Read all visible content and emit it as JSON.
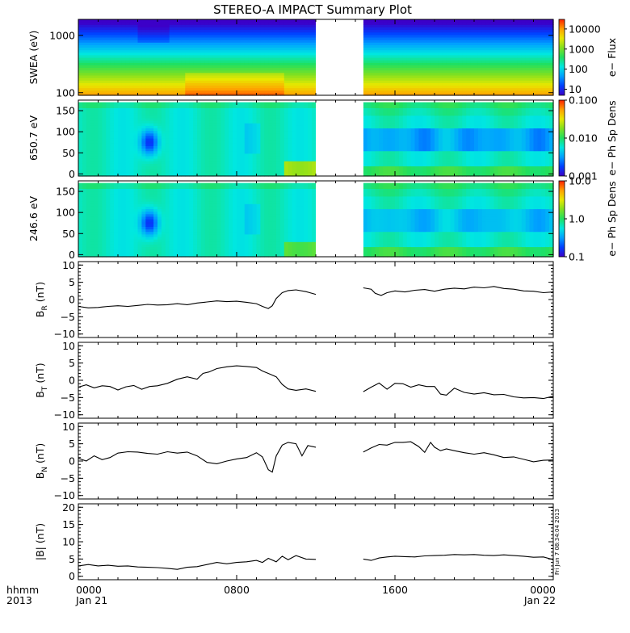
{
  "title": "STEREO-A IMPACT Summary Plot",
  "stamp": "Fri Jun  7 08:34:04 2013",
  "time_axis": {
    "row1_labels": [
      "0000",
      "0800",
      "1600",
      "0000"
    ],
    "row2_labels": [
      "Jan 21",
      "",
      "",
      "Jan 22"
    ],
    "corner_row1": "hhmm",
    "corner_row2": "2013",
    "range_hours": [
      0,
      24
    ],
    "data_gap_hours": [
      12.0,
      14.4
    ]
  },
  "colors": {
    "spectrogram_scale": [
      "#3c00c8",
      "#0040ff",
      "#00a0ff",
      "#00e8e0",
      "#20e060",
      "#80e020",
      "#e8e800",
      "#ffa000",
      "#ff2000"
    ],
    "trace": "#000000"
  },
  "chart_data": [
    {
      "id": "swea",
      "type": "heatmap",
      "ylabel": "SWEA (eV)",
      "yscale": "log",
      "ylim": [
        90,
        1900
      ],
      "ytick_labels": [
        "1000",
        "100"
      ],
      "ytick_values": [
        1000,
        100
      ],
      "colorbar": {
        "label": "e− Flux",
        "scale": "log",
        "range": [
          5,
          30000
        ],
        "tick_labels": [
          "10000",
          "1000",
          "100",
          "10"
        ],
        "tick_values": [
          10000,
          1000,
          100,
          10
        ]
      }
    },
    {
      "id": "pad650",
      "type": "heatmap",
      "ylabel": "650.7 eV",
      "ylim": [
        -5,
        175
      ],
      "ytick_labels": [
        "150",
        "100",
        "50",
        "0"
      ],
      "ytick_values": [
        150,
        100,
        50,
        0
      ],
      "colorbar": {
        "label": "e− Ph Sp Dens",
        "scale": "log",
        "range": [
          0.001,
          0.1
        ],
        "tick_labels": [
          "0.100",
          "0.010",
          "0.001"
        ],
        "tick_values": [
          0.1,
          0.01,
          0.001
        ]
      }
    },
    {
      "id": "pad246",
      "type": "heatmap",
      "ylabel": "246.6 eV",
      "ylim": [
        -5,
        175
      ],
      "ytick_labels": [
        "150",
        "100",
        "50",
        "0"
      ],
      "ytick_values": [
        150,
        100,
        50,
        0
      ],
      "colorbar": {
        "label": "e− Ph Sp Dens",
        "scale": "log",
        "range": [
          0.1,
          10.0
        ],
        "tick_labels": [
          "10.0",
          "1.0",
          "0.1"
        ],
        "tick_values": [
          10,
          1,
          0.1
        ]
      }
    },
    {
      "id": "br",
      "type": "line",
      "ylabel": "B",
      "ylabel_sub": "R",
      "ylabel_unit": "(nT)",
      "ylim": [
        -11,
        11
      ],
      "ytick_labels": [
        "10",
        "5",
        "0",
        "−5",
        "−10"
      ],
      "ytick_values": [
        10,
        5,
        0,
        -5,
        -10
      ],
      "x": [
        0,
        0.5,
        1,
        1.5,
        2,
        2.5,
        3,
        3.5,
        4,
        4.5,
        5,
        5.5,
        6,
        6.5,
        7,
        7.5,
        8,
        8.5,
        9,
        9.3,
        9.6,
        9.8,
        10,
        10.3,
        10.6,
        11,
        11.5,
        12,
        14.4,
        14.8,
        15,
        15.3,
        15.6,
        16,
        16.5,
        17,
        17.5,
        18,
        18.5,
        19,
        19.5,
        20,
        20.5,
        21,
        21.5,
        22,
        22.5,
        23,
        23.5,
        24
      ],
      "y": [
        -2,
        -2.4,
        -2.3,
        -2.0,
        -1.8,
        -2.0,
        -1.7,
        -1.4,
        -1.6,
        -1.5,
        -1.2,
        -1.5,
        -1.0,
        -0.7,
        -0.4,
        -0.6,
        -0.5,
        -0.8,
        -1.2,
        -2.0,
        -2.6,
        -1.8,
        0.3,
        2.0,
        2.6,
        2.8,
        2.3,
        1.5,
        3.4,
        3.0,
        1.8,
        1.2,
        2.0,
        2.5,
        2.2,
        2.7,
        2.9,
        2.4,
        3.0,
        3.3,
        3.1,
        3.6,
        3.4,
        3.8,
        3.2,
        3.0,
        2.5,
        2.4,
        2.0,
        2.2
      ]
    },
    {
      "id": "bt",
      "type": "line",
      "ylabel": "B",
      "ylabel_sub": "T",
      "ylabel_unit": "(nT)",
      "ylim": [
        -11,
        11
      ],
      "ytick_labels": [
        "10",
        "5",
        "0",
        "−5",
        "−10"
      ],
      "ytick_values": [
        10,
        5,
        0,
        -5,
        -10
      ],
      "x": [
        0,
        0.4,
        0.8,
        1.2,
        1.6,
        2,
        2.4,
        2.8,
        3.2,
        3.6,
        4,
        4.5,
        5,
        5.5,
        6,
        6.3,
        6.6,
        7,
        7.5,
        8,
        8.5,
        9,
        9.3,
        9.6,
        10,
        10.3,
        10.6,
        11,
        11.5,
        12,
        14.4,
        14.8,
        15.2,
        15.6,
        16,
        16.4,
        16.8,
        17.2,
        17.6,
        18,
        18.3,
        18.6,
        19,
        19.5,
        20,
        20.5,
        21,
        21.5,
        22,
        22.5,
        23,
        23.5,
        24
      ],
      "y": [
        -2.0,
        -1.3,
        -2.2,
        -1.6,
        -1.8,
        -2.8,
        -1.9,
        -1.5,
        -2.6,
        -1.8,
        -1.6,
        -0.9,
        0.3,
        1.0,
        0.3,
        2.0,
        2.4,
        3.4,
        3.9,
        4.2,
        4.0,
        3.7,
        2.7,
        2.0,
        1.0,
        -1.2,
        -2.5,
        -2.9,
        -2.5,
        -3.2,
        -3.3,
        -2.0,
        -0.8,
        -2.6,
        -0.9,
        -1.0,
        -2.0,
        -1.3,
        -1.8,
        -1.8,
        -4.0,
        -4.3,
        -2.3,
        -3.5,
        -4.0,
        -3.6,
        -4.2,
        -4.1,
        -4.8,
        -5.1,
        -5.0,
        -5.3,
        -4.6
      ]
    },
    {
      "id": "bn",
      "type": "line",
      "ylabel": "B",
      "ylabel_sub": "N",
      "ylabel_unit": "(nT)",
      "ylim": [
        -11,
        11
      ],
      "ytick_labels": [
        "10",
        "5",
        "0",
        "−5",
        "−10"
      ],
      "ytick_values": [
        10,
        5,
        0,
        -5,
        -10
      ],
      "x": [
        0,
        0.4,
        0.8,
        1.2,
        1.6,
        2,
        2.5,
        3,
        3.5,
        4,
        4.5,
        5,
        5.5,
        6,
        6.5,
        7,
        7.5,
        8,
        8.5,
        9,
        9.3,
        9.6,
        9.8,
        10,
        10.3,
        10.6,
        11,
        11.3,
        11.6,
        12,
        14.4,
        14.8,
        15.2,
        15.6,
        16,
        16.4,
        16.8,
        17.2,
        17.5,
        17.8,
        18,
        18.3,
        18.6,
        19,
        19.5,
        20,
        20.5,
        21,
        21.5,
        22,
        22.5,
        23,
        23.5,
        24
      ],
      "y": [
        0.8,
        0.0,
        1.5,
        0.4,
        1.0,
        2.3,
        2.7,
        2.6,
        2.2,
        2.0,
        2.7,
        2.3,
        2.6,
        1.5,
        -0.4,
        -0.8,
        0.0,
        0.6,
        1.0,
        2.4,
        1.2,
        -2.5,
        -3.2,
        1.5,
        4.6,
        5.4,
        5.0,
        1.5,
        4.5,
        4.0,
        2.6,
        3.8,
        4.8,
        4.6,
        5.4,
        5.4,
        5.6,
        4.2,
        2.5,
        5.4,
        4.0,
        3.0,
        3.5,
        3.0,
        2.4,
        2.0,
        2.4,
        1.8,
        1.0,
        1.2,
        0.5,
        -0.2,
        0.2,
        0.3
      ]
    },
    {
      "id": "bmag",
      "type": "line",
      "ylabel": "|B|",
      "ylabel_unit": "(nT)",
      "ylim": [
        -1,
        21
      ],
      "ytick_labels": [
        "20",
        "15",
        "10",
        "5",
        "0"
      ],
      "ytick_values": [
        20,
        15,
        10,
        5,
        0
      ],
      "x": [
        0,
        0.5,
        1,
        1.5,
        2,
        2.5,
        3,
        3.5,
        4,
        4.5,
        5,
        5.5,
        6,
        6.5,
        7,
        7.5,
        8,
        8.5,
        9,
        9.3,
        9.6,
        10,
        10.3,
        10.6,
        11,
        11.5,
        12,
        14.4,
        14.8,
        15.2,
        15.6,
        16,
        16.5,
        17,
        17.5,
        18,
        18.5,
        19,
        19.5,
        20,
        20.5,
        21,
        21.5,
        22,
        22.5,
        23,
        23.5,
        24
      ],
      "y": [
        3.0,
        3.4,
        3.0,
        3.2,
        2.9,
        3.0,
        2.7,
        2.6,
        2.5,
        2.3,
        2.0,
        2.6,
        2.8,
        3.4,
        4.0,
        3.6,
        4.0,
        4.2,
        4.6,
        4.0,
        5.2,
        4.2,
        5.8,
        4.8,
        6.0,
        5.0,
        4.9,
        5.0,
        4.6,
        5.3,
        5.6,
        5.8,
        5.7,
        5.6,
        5.9,
        6.0,
        6.1,
        6.3,
        6.2,
        6.3,
        6.1,
        6.0,
        6.2,
        6.0,
        5.8,
        5.5,
        5.6,
        4.8
      ]
    }
  ]
}
